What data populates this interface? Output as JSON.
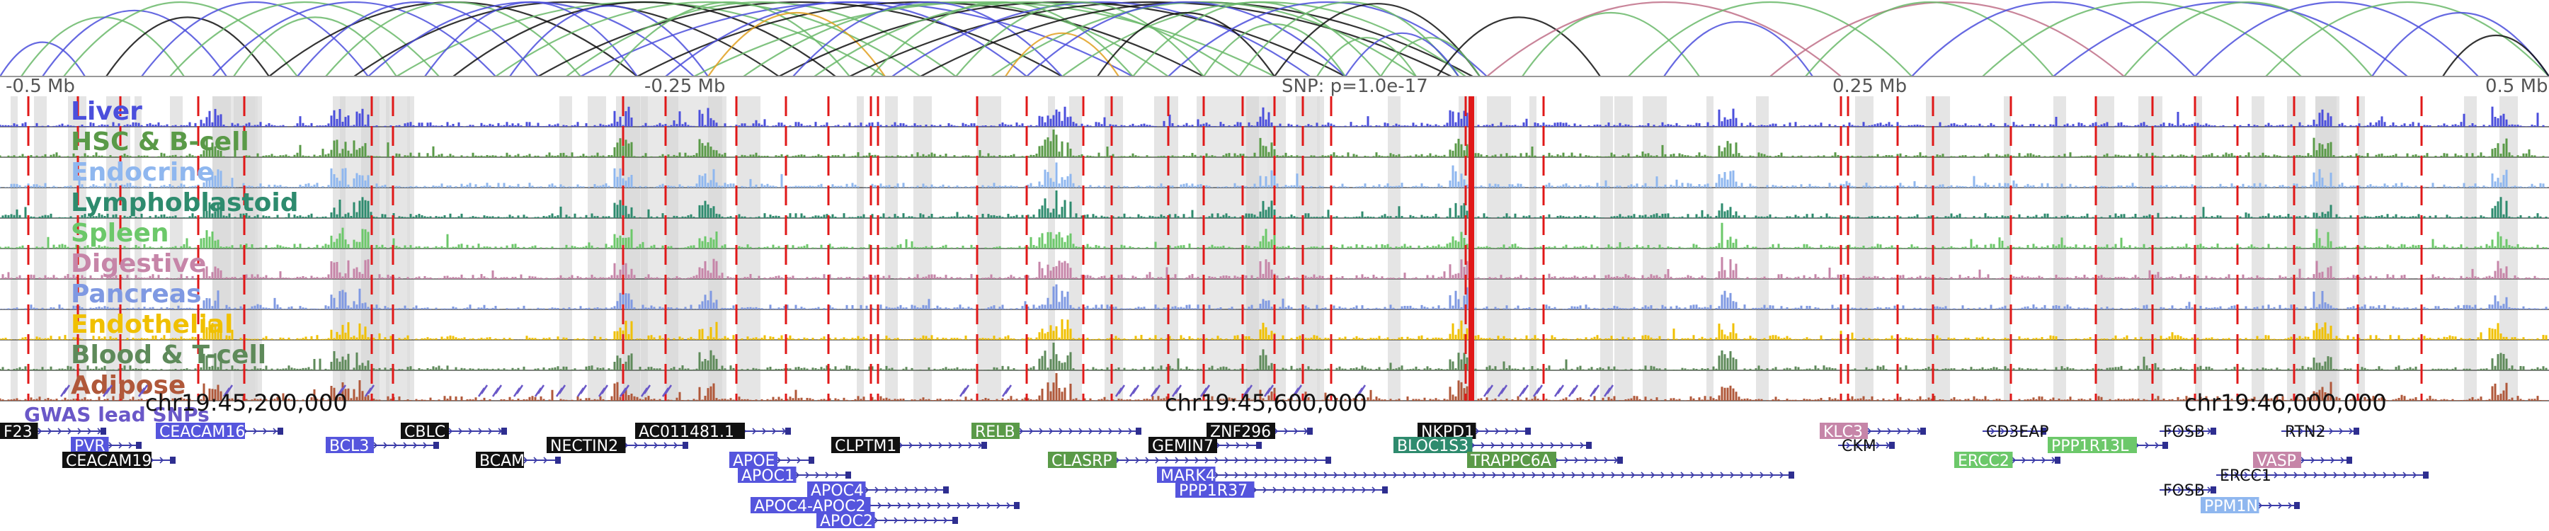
{
  "scale": {
    "left_label": "-0.5 Mb",
    "left_mid_label": "-0.25 Mb",
    "snp_label": "SNP: p=1.0e-17",
    "right_mid_label": "0.25 Mb",
    "right_label": "0.5 Mb"
  },
  "tracks": [
    {
      "label": "Liver",
      "color": "#4b4fdc"
    },
    {
      "label": "HSC & B-cell",
      "color": "#5a9a48"
    },
    {
      "label": "Endocrine",
      "color": "#8fb7ef"
    },
    {
      "label": "Lymphoblastoid",
      "color": "#2e8b6e"
    },
    {
      "label": "Spleen",
      "color": "#6cc86a"
    },
    {
      "label": "Digestive",
      "color": "#c685a8"
    },
    {
      "label": "Pancreas",
      "color": "#7f99e2"
    },
    {
      "label": "Endothelial",
      "color": "#f0c000"
    },
    {
      "label": "Blood & T-cell",
      "color": "#5e8a5a"
    },
    {
      "label": "Adipose",
      "color": "#b0583a"
    }
  ],
  "gwas_label": "GWAS lead SNPs",
  "coordinates": [
    "chr19:45,200,000",
    "chr19:45,600,000",
    "chr19:46,000,000"
  ],
  "genes": [
    {
      "name": "F23",
      "style": "box",
      "fill": "#111111"
    },
    {
      "name": "CEACAM16",
      "style": "box",
      "fill": "#5555dd"
    },
    {
      "name": "PVR",
      "style": "box",
      "fill": "#5555dd"
    },
    {
      "name": "BCL3",
      "style": "box",
      "fill": "#5555dd"
    },
    {
      "name": "CEACAM19",
      "style": "box",
      "fill": "#111111"
    },
    {
      "name": "CBLC",
      "style": "box",
      "fill": "#111111"
    },
    {
      "name": "BCAM",
      "style": "box",
      "fill": "#111111"
    },
    {
      "name": "NECTIN2",
      "style": "box",
      "fill": "#111111"
    },
    {
      "name": "AC011481.1",
      "style": "box",
      "fill": "#111111"
    },
    {
      "name": "APOE",
      "style": "box",
      "fill": "#5555dd"
    },
    {
      "name": "APOC1",
      "style": "box",
      "fill": "#5555dd"
    },
    {
      "name": "APOC4",
      "style": "box",
      "fill": "#5555dd"
    },
    {
      "name": "APOC4-APOC2",
      "style": "box",
      "fill": "#5555dd"
    },
    {
      "name": "APOC2",
      "style": "box",
      "fill": "#5555dd"
    },
    {
      "name": "CLPTM1",
      "style": "box",
      "fill": "#111111"
    },
    {
      "name": "RELB",
      "style": "box",
      "fill": "#5a9a48"
    },
    {
      "name": "CLASRP",
      "style": "box",
      "fill": "#5a9a48"
    },
    {
      "name": "GEMIN7",
      "style": "box",
      "fill": "#111111"
    },
    {
      "name": "ZNF296",
      "style": "box",
      "fill": "#111111"
    },
    {
      "name": "MARK4",
      "style": "box",
      "fill": "#5555dd"
    },
    {
      "name": "PPP1R37",
      "style": "box",
      "fill": "#5555dd"
    },
    {
      "name": "NKPD1",
      "style": "box",
      "fill": "#111111"
    },
    {
      "name": "BLOC1S3",
      "style": "box",
      "fill": "#2e8b6e"
    },
    {
      "name": "TRAPPC6A",
      "style": "box",
      "fill": "#5a9a48"
    },
    {
      "name": "KLC3",
      "style": "box",
      "fill": "#c685a8"
    },
    {
      "name": "CKM",
      "style": "text",
      "fill": "#111111"
    },
    {
      "name": "CD3EAP",
      "style": "text",
      "fill": "#111111"
    },
    {
      "name": "PPP1R13L",
      "style": "box",
      "fill": "#6cc86a"
    },
    {
      "name": "ERCC2",
      "style": "box",
      "fill": "#6cc86a"
    },
    {
      "name": "FOSB",
      "style": "text",
      "fill": "#111111"
    },
    {
      "name": "RTN2",
      "style": "text",
      "fill": "#111111"
    },
    {
      "name": "VASP",
      "style": "box",
      "fill": "#c685a8"
    },
    {
      "name": "ERCC1",
      "style": "text",
      "fill": "#111111"
    },
    {
      "name": "FOSB",
      "style": "text",
      "fill": "#111111"
    },
    {
      "name": "PPM1N",
      "style": "box",
      "fill": "#8fb7ef"
    }
  ],
  "arc_colors": [
    "#4b4fdc",
    "#6ab86a",
    "#111111",
    "#e0a020",
    "#c07088"
  ]
}
